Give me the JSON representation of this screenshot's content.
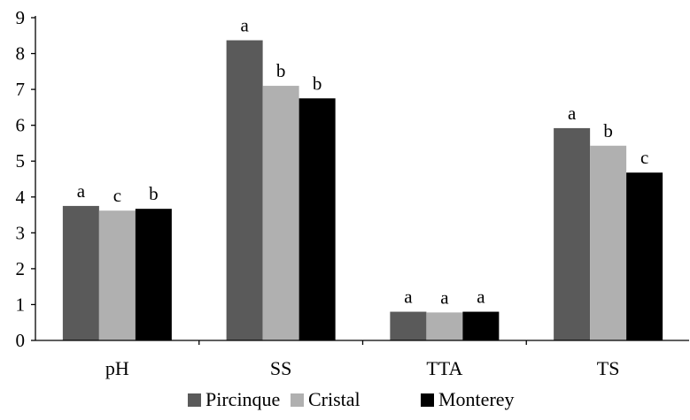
{
  "chart_data": {
    "type": "bar",
    "categories": [
      "pH",
      "SS",
      "TTA",
      "TS"
    ],
    "series": [
      {
        "name": "Pircinque",
        "color": "#5a5a5a",
        "values": [
          3.75,
          8.37,
          0.8,
          5.92
        ],
        "labels": [
          "a",
          "a",
          "a",
          "a"
        ]
      },
      {
        "name": "Cristal",
        "color": "#b0b0b0",
        "values": [
          3.62,
          7.1,
          0.78,
          5.43
        ],
        "labels": [
          "c",
          "b",
          "a",
          "b"
        ]
      },
      {
        "name": "Monterey",
        "color": "#000000",
        "values": [
          3.67,
          6.75,
          0.8,
          4.68
        ],
        "labels": [
          "b",
          "b",
          "a",
          "c"
        ]
      }
    ],
    "ylim": [
      0,
      9
    ],
    "yticks": [
      "0",
      "1",
      "2",
      "3",
      "4",
      "5",
      "6",
      "7",
      "8",
      "9"
    ],
    "grid": false,
    "legend_position": "bottom"
  }
}
